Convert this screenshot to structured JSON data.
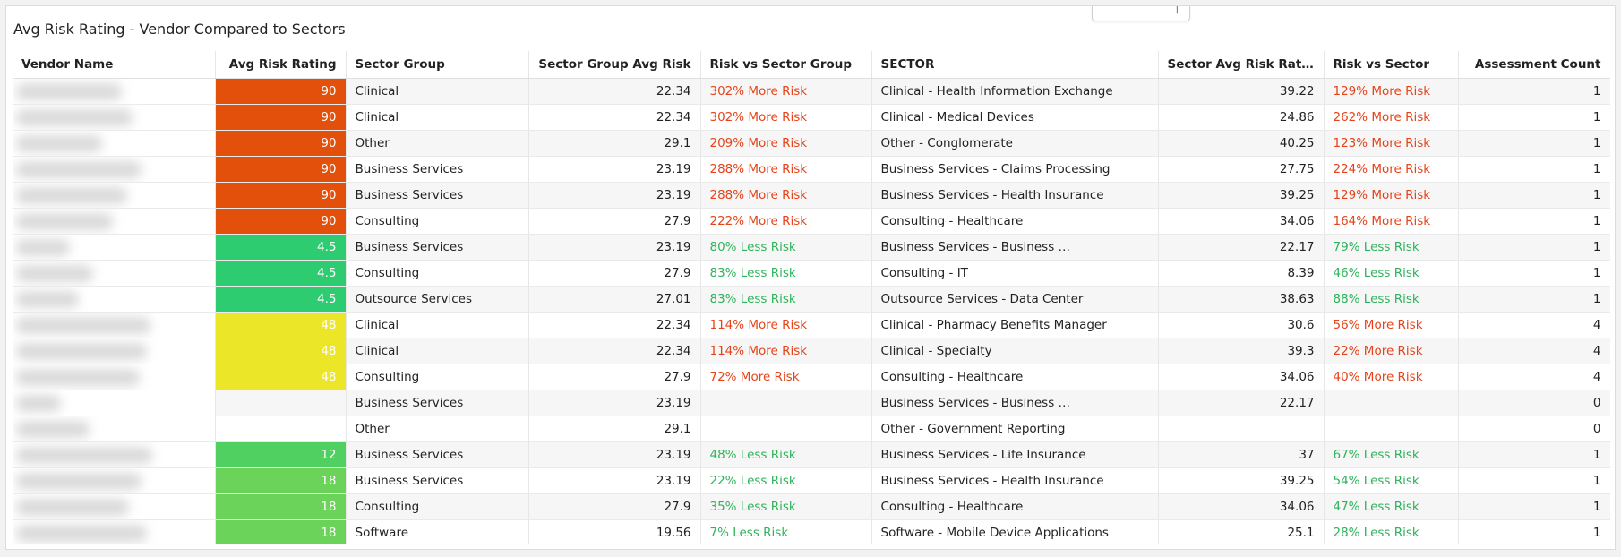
{
  "title": "Avg Risk Rating - Vendor Compared to Sectors",
  "top_tab_mark": "|",
  "colors": {
    "high_risk": "#e3500b",
    "low_risk_a": "#2ecc71",
    "low_risk_b": "#50d060",
    "low_risk_c": "#6cd35a",
    "medium_risk": "#ece628",
    "more_risk_text": "#e5431a",
    "less_risk_text": "#2fb35c"
  },
  "columns": [
    "Vendor Name",
    "Avg Risk Rating",
    "Sector Group",
    "Sector Group Avg Risk",
    "Risk vs Sector Group",
    "SECTOR",
    "Sector Avg Risk Rating",
    "Risk vs Sector",
    "Assessment Count"
  ],
  "rows": [
    {
      "vendor": "",
      "rating": "90",
      "rating_color": "#e3500b",
      "group": "Clinical",
      "group_avg": "22.34",
      "vs_group": "302% More Risk",
      "vs_group_kind": "more",
      "sector": "Clinical - Health Information Exchange",
      "sector_avg": "39.22",
      "vs_sector": "129% More Risk",
      "vs_sector_kind": "more",
      "count": "1"
    },
    {
      "vendor": "",
      "rating": "90",
      "rating_color": "#e3500b",
      "group": "Clinical",
      "group_avg": "22.34",
      "vs_group": "302% More Risk",
      "vs_group_kind": "more",
      "sector": "Clinical - Medical Devices",
      "sector_avg": "24.86",
      "vs_sector": "262% More Risk",
      "vs_sector_kind": "more",
      "count": "1"
    },
    {
      "vendor": "",
      "rating": "90",
      "rating_color": "#e3500b",
      "group": "Other",
      "group_avg": "29.1",
      "vs_group": "209% More Risk",
      "vs_group_kind": "more",
      "sector": "Other - Conglomerate",
      "sector_avg": "40.25",
      "vs_sector": "123% More Risk",
      "vs_sector_kind": "more",
      "count": "1"
    },
    {
      "vendor": "",
      "rating": "90",
      "rating_color": "#e3500b",
      "group": "Business Services",
      "group_avg": "23.19",
      "vs_group": "288% More Risk",
      "vs_group_kind": "more",
      "sector": "Business Services - Claims Processing",
      "sector_avg": "27.75",
      "vs_sector": "224% More Risk",
      "vs_sector_kind": "more",
      "count": "1"
    },
    {
      "vendor": "",
      "rating": "90",
      "rating_color": "#e3500b",
      "group": "Business Services",
      "group_avg": "23.19",
      "vs_group": "288% More Risk",
      "vs_group_kind": "more",
      "sector": "Business Services - Health Insurance",
      "sector_avg": "39.25",
      "vs_sector": "129% More Risk",
      "vs_sector_kind": "more",
      "count": "1"
    },
    {
      "vendor": "",
      "rating": "90",
      "rating_color": "#e3500b",
      "group": "Consulting",
      "group_avg": "27.9",
      "vs_group": "222% More Risk",
      "vs_group_kind": "more",
      "sector": "Consulting - Healthcare",
      "sector_avg": "34.06",
      "vs_sector": "164% More Risk",
      "vs_sector_kind": "more",
      "count": "1"
    },
    {
      "vendor": "",
      "rating": "4.5",
      "rating_color": "#2ecc71",
      "group": "Business Services",
      "group_avg": "23.19",
      "vs_group": "80% Less Risk",
      "vs_group_kind": "less",
      "sector": "Business Services - Business …",
      "sector_avg": "22.17",
      "vs_sector": "79% Less Risk",
      "vs_sector_kind": "less",
      "count": "1"
    },
    {
      "vendor": "",
      "rating": "4.5",
      "rating_color": "#2ecc71",
      "group": "Consulting",
      "group_avg": "27.9",
      "vs_group": "83% Less Risk",
      "vs_group_kind": "less",
      "sector": "Consulting - IT",
      "sector_avg": "8.39",
      "vs_sector": "46% Less Risk",
      "vs_sector_kind": "less",
      "count": "1"
    },
    {
      "vendor": "",
      "rating": "4.5",
      "rating_color": "#2ecc71",
      "group": "Outsource Services",
      "group_avg": "27.01",
      "vs_group": "83% Less Risk",
      "vs_group_kind": "less",
      "sector": "Outsource Services - Data Center",
      "sector_avg": "38.63",
      "vs_sector": "88% Less Risk",
      "vs_sector_kind": "less",
      "count": "1"
    },
    {
      "vendor": "",
      "rating": "48",
      "rating_color": "#ece628",
      "group": "Clinical",
      "group_avg": "22.34",
      "vs_group": "114% More Risk",
      "vs_group_kind": "more",
      "sector": "Clinical - Pharmacy Benefits Manager",
      "sector_avg": "30.6",
      "vs_sector": "56% More Risk",
      "vs_sector_kind": "more",
      "count": "4"
    },
    {
      "vendor": "",
      "rating": "48",
      "rating_color": "#ece628",
      "group": "Clinical",
      "group_avg": "22.34",
      "vs_group": "114% More Risk",
      "vs_group_kind": "more",
      "sector": "Clinical - Specialty",
      "sector_avg": "39.3",
      "vs_sector": "22% More Risk",
      "vs_sector_kind": "more",
      "count": "4"
    },
    {
      "vendor": "",
      "rating": "48",
      "rating_color": "#ece628",
      "group": "Consulting",
      "group_avg": "27.9",
      "vs_group": "72% More Risk",
      "vs_group_kind": "more",
      "sector": "Consulting - Healthcare",
      "sector_avg": "34.06",
      "vs_sector": "40% More Risk",
      "vs_sector_kind": "more",
      "count": "4"
    },
    {
      "vendor": "",
      "rating": "",
      "rating_color": "",
      "group": "Business Services",
      "group_avg": "23.19",
      "vs_group": "",
      "vs_group_kind": "",
      "sector": "Business Services - Business …",
      "sector_avg": "22.17",
      "vs_sector": "",
      "vs_sector_kind": "",
      "count": "0"
    },
    {
      "vendor": "",
      "rating": "",
      "rating_color": "",
      "group": "Other",
      "group_avg": "29.1",
      "vs_group": "",
      "vs_group_kind": "",
      "sector": "Other - Government Reporting",
      "sector_avg": "",
      "vs_sector": "",
      "vs_sector_kind": "",
      "count": "0"
    },
    {
      "vendor": "",
      "rating": "12",
      "rating_color": "#50d060",
      "group": "Business Services",
      "group_avg": "23.19",
      "vs_group": "48% Less Risk",
      "vs_group_kind": "less",
      "sector": "Business Services - Life Insurance",
      "sector_avg": "37",
      "vs_sector": "67% Less Risk",
      "vs_sector_kind": "less",
      "count": "1"
    },
    {
      "vendor": "",
      "rating": "18",
      "rating_color": "#6cd35a",
      "group": "Business Services",
      "group_avg": "23.19",
      "vs_group": "22% Less Risk",
      "vs_group_kind": "less",
      "sector": "Business Services - Health Insurance",
      "sector_avg": "39.25",
      "vs_sector": "54% Less Risk",
      "vs_sector_kind": "less",
      "count": "1"
    },
    {
      "vendor": "",
      "rating": "18",
      "rating_color": "#6cd35a",
      "group": "Consulting",
      "group_avg": "27.9",
      "vs_group": "35% Less Risk",
      "vs_group_kind": "less",
      "sector": "Consulting - Healthcare",
      "sector_avg": "34.06",
      "vs_sector": "47% Less Risk",
      "vs_sector_kind": "less",
      "count": "1"
    },
    {
      "vendor": "",
      "rating": "18",
      "rating_color": "#6cd35a",
      "group": "Software",
      "group_avg": "19.56",
      "vs_group": "7% Less Risk",
      "vs_group_kind": "less",
      "sector": "Software - Mobile Device Applications",
      "sector_avg": "25.1",
      "vs_sector": "28% Less Risk",
      "vs_sector_kind": "less",
      "count": "1"
    }
  ]
}
